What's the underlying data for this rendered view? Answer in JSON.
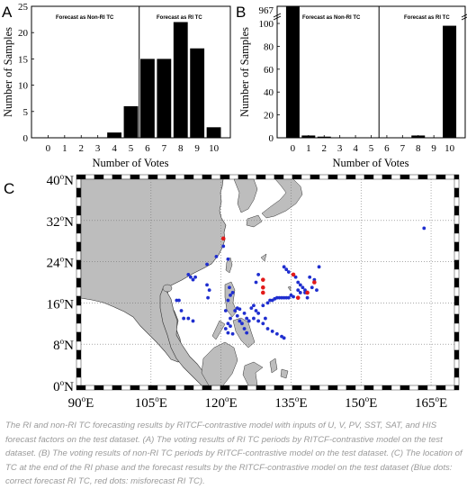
{
  "chart_data": [
    {
      "panel": "A",
      "type": "bar",
      "xlabel": "Number of Votes",
      "ylabel": "Number of Samples",
      "categories": [
        "0",
        "1",
        "2",
        "3",
        "4",
        "5",
        "6",
        "7",
        "8",
        "9",
        "10"
      ],
      "values": [
        0,
        0,
        0,
        0,
        1,
        6,
        15,
        15,
        22,
        17,
        2
      ],
      "ylim": [
        0,
        25
      ],
      "yticks": [
        "0",
        "5",
        "10",
        "15",
        "20",
        "25"
      ],
      "divider_x": 5.5,
      "annotations": [
        "Forecast as Non-RI TC",
        "Forecast as RI TC"
      ]
    },
    {
      "panel": "B",
      "type": "bar",
      "xlabel": "Number of Votes",
      "ylabel": "Number of Samples",
      "categories": [
        "0",
        "1",
        "2",
        "3",
        "4",
        "5",
        "6",
        "7",
        "8",
        "9",
        "10"
      ],
      "values": [
        967,
        2,
        1,
        0,
        0,
        0,
        0,
        0,
        2,
        0,
        98
      ],
      "ylim": [
        0,
        115
      ],
      "yticks": [
        "0",
        "20",
        "40",
        "60",
        "80",
        "100"
      ],
      "top_label": "967",
      "axis_break": true,
      "divider_x": 5.5,
      "annotations": [
        "Forecast as Non-RI TC",
        "Forecast as RI TC"
      ]
    },
    {
      "panel": "C",
      "type": "scatter",
      "xlim": [
        90,
        170
      ],
      "ylim": [
        0,
        40
      ],
      "xticks": [
        {
          "v": 90,
          "t": "90"
        },
        {
          "v": 105,
          "t": "105"
        },
        {
          "v": 120,
          "t": "120"
        },
        {
          "v": 135,
          "t": "135"
        },
        {
          "v": 150,
          "t": "150"
        },
        {
          "v": 165,
          "t": "165"
        }
      ],
      "yticks": [
        {
          "v": 0,
          "t": "0"
        },
        {
          "v": 8,
          "t": "8"
        },
        {
          "v": 16,
          "t": "16"
        },
        {
          "v": 24,
          "t": "24"
        },
        {
          "v": 32,
          "t": "32"
        },
        {
          "v": 40,
          "t": "40"
        }
      ],
      "lon_suffix": "E",
      "lat_suffix": "N",
      "deg_symbol": "o",
      "series": [
        {
          "color": "#1f2ecf",
          "points": [
            [
              163.5,
              30.5
            ],
            [
              120.5,
              27.0
            ],
            [
              119.0,
              25.0
            ],
            [
              117.0,
              23.5
            ],
            [
              121.5,
              24.5
            ],
            [
              113.0,
              21.5
            ],
            [
              113.5,
              21.0
            ],
            [
              114.0,
              20.5
            ],
            [
              114.5,
              21.0
            ],
            [
              121.8,
              19.0
            ],
            [
              122.5,
              18.0
            ],
            [
              121.5,
              16.5
            ],
            [
              122.0,
              17.5
            ],
            [
              110.5,
              16.5
            ],
            [
              111.0,
              16.5
            ],
            [
              111.5,
              14.5
            ],
            [
              112.0,
              13.0
            ],
            [
              113.0,
              13.0
            ],
            [
              114.0,
              12.5
            ],
            [
              117.0,
              19.5
            ],
            [
              117.5,
              18.5
            ],
            [
              117.2,
              17.0
            ],
            [
              121.0,
              14.5
            ],
            [
              122.0,
              13.0
            ],
            [
              121.5,
              12.0
            ],
            [
              121.0,
              11.0
            ],
            [
              122.0,
              11.5
            ],
            [
              122.5,
              10.0
            ],
            [
              121.5,
              10.2
            ],
            [
              123.0,
              14.5
            ],
            [
              123.5,
              13.5
            ],
            [
              124.0,
              12.5
            ],
            [
              124.5,
              12.0
            ],
            [
              125.0,
              11.0
            ],
            [
              125.5,
              10.2
            ],
            [
              123.5,
              15.0
            ],
            [
              124.0,
              14.8
            ],
            [
              125.0,
              14.0
            ],
            [
              125.5,
              13.0
            ],
            [
              126.0,
              12.5
            ],
            [
              127.0,
              13.0
            ],
            [
              128.0,
              12.5
            ],
            [
              129.0,
              12.0
            ],
            [
              130.0,
              11.0
            ],
            [
              131.0,
              10.5
            ],
            [
              132.0,
              10.0
            ],
            [
              133.0,
              9.5
            ],
            [
              133.5,
              9.2
            ],
            [
              127.0,
              15.5
            ],
            [
              127.5,
              14.5
            ],
            [
              126.5,
              15.0
            ],
            [
              128.0,
              14.0
            ],
            [
              129.0,
              15.5
            ],
            [
              129.5,
              13.0
            ],
            [
              130.0,
              16.0
            ],
            [
              130.5,
              16.5
            ],
            [
              131.0,
              16.5
            ],
            [
              131.5,
              16.8
            ],
            [
              132.0,
              17.0
            ],
            [
              132.5,
              17.0
            ],
            [
              133.0,
              17.0
            ],
            [
              133.5,
              17.0
            ],
            [
              134.0,
              17.0
            ],
            [
              134.5,
              17.0
            ],
            [
              135.0,
              17.5
            ],
            [
              135.5,
              17.2
            ],
            [
              133.5,
              23.0
            ],
            [
              134.0,
              22.5
            ],
            [
              134.5,
              22.0
            ],
            [
              136.0,
              21.0
            ],
            [
              136.5,
              20.0
            ],
            [
              137.0,
              19.5
            ],
            [
              137.5,
              19.0
            ],
            [
              138.0,
              18.0
            ],
            [
              138.5,
              17.0
            ],
            [
              138.0,
              18.5
            ],
            [
              137.0,
              18.0
            ],
            [
              136.5,
              18.5
            ],
            [
              139.0,
              21.0
            ],
            [
              140.0,
              20.5
            ],
            [
              141.0,
              23.0
            ],
            [
              139.5,
              19.0
            ],
            [
              140.5,
              18.5
            ],
            [
              128.0,
              21.5
            ],
            [
              127.5,
              20.0
            ],
            [
              129.0,
              19.0
            ]
          ]
        },
        {
          "color": "#e21a1a",
          "points": [
            [
              120.5,
              28.5
            ],
            [
              129.0,
              20.5
            ],
            [
              129.0,
              19.0
            ],
            [
              129.0,
              18.0
            ],
            [
              135.5,
              21.5
            ],
            [
              136.5,
              17.0
            ],
            [
              138.5,
              18.0
            ],
            [
              140.0,
              20.0
            ]
          ]
        }
      ]
    }
  ],
  "caption": "The RI and non-RI TC forecasting results by RITCF-contrastive model with inputs of U, V, PV, SST, SAT, and HIS forecast factors on the test dataset. (A) The voting results of RI TC periods by RITCF-contrastive model on the test dataset. (B) The voting results of non-RI TC periods by RITCF-contrastive model on the test dataset. (C) The location of TC at the end of the RI phase and the forecast results by the RITCF-contrastive model on the test dataset (Blue dots: correct forecast RI TC, red dots: misforecast RI TC)."
}
